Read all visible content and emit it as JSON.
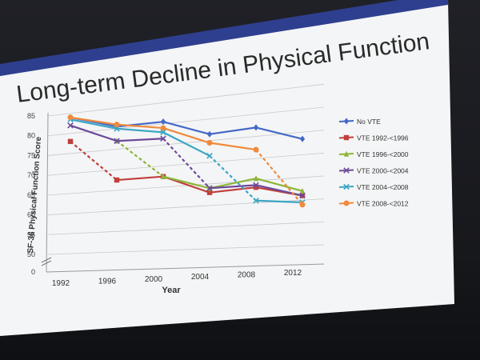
{
  "slide": {
    "title": "Long-term Decline in Physical Function",
    "accent_color": "#2f3f8f"
  },
  "chart_data": {
    "type": "line",
    "title": "",
    "xlabel": "Year",
    "ylabel": "SF-36 Physical Function Score",
    "x": [
      "1992",
      "1996",
      "2000",
      "2004",
      "2008",
      "2012"
    ],
    "yticks": [
      "0",
      "50",
      "55",
      "60",
      "65",
      "70",
      "75",
      "80",
      "85"
    ],
    "ylim": [
      50,
      85
    ],
    "axis_break": true,
    "grid": true,
    "legend_position": "right",
    "series": [
      {
        "name": "No VTE",
        "color": "#4468c6",
        "marker": "diamond",
        "values": [
          84,
          80.5,
          80.5,
          76.5,
          77,
          73.5
        ],
        "dashed_from": null
      },
      {
        "name": "VTE 1992-<1996",
        "color": "#c0403c",
        "marker": "square",
        "values": [
          78,
          67.5,
          67.5,
          63,
          63.5,
          61
        ],
        "dashed_from": 0
      },
      {
        "name": "VTE 1996-<2000",
        "color": "#8db53a",
        "marker": "triangle",
        "values": [
          null,
          77,
          67.5,
          64,
          65.5,
          62
        ],
        "dashed_from": 1
      },
      {
        "name": "VTE 2000-<2004",
        "color": "#6d4a9a",
        "marker": "x",
        "values": [
          82,
          77,
          76.5,
          64,
          64,
          61
        ],
        "dashed_from": 2
      },
      {
        "name": "VTE 2004-<2008",
        "color": "#3aa6c4",
        "marker": "x",
        "values": [
          83.5,
          80,
          78,
          71.5,
          60.5,
          59.5
        ],
        "dashed_from": 3
      },
      {
        "name": "VTE 2008-<2012",
        "color": "#f08a3c",
        "marker": "circle",
        "values": [
          84,
          81,
          79,
          74.5,
          72,
          59
        ],
        "dashed_from": 4
      }
    ]
  }
}
